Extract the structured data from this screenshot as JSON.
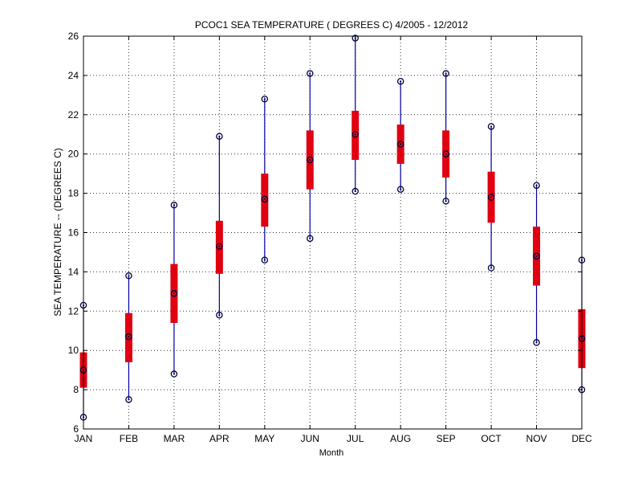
{
  "chart_data": {
    "type": "box",
    "title": "PCOC1  SEA TEMPERATURE ( DEGREES C) 4/2005 - 12/2012",
    "xlabel": "Month",
    "ylabel": "SEA TEMPERATURE -- (DEGREES C)",
    "ylim": [
      6,
      26
    ],
    "yticks": [
      6,
      8,
      10,
      12,
      14,
      16,
      18,
      20,
      22,
      24,
      26
    ],
    "categories": [
      "JAN",
      "FEB",
      "MAR",
      "APR",
      "MAY",
      "JUN",
      "JUL",
      "AUG",
      "SEP",
      "OCT",
      "NOV",
      "DEC"
    ],
    "min": [
      6.6,
      7.5,
      8.8,
      11.8,
      14.6,
      15.7,
      18.1,
      18.2,
      17.6,
      14.2,
      10.4,
      8.0
    ],
    "q1": [
      8.1,
      9.4,
      11.4,
      13.9,
      16.3,
      18.2,
      19.7,
      19.5,
      18.8,
      16.5,
      13.3,
      9.1
    ],
    "median": [
      9.0,
      10.7,
      12.9,
      15.3,
      17.7,
      19.7,
      21.0,
      20.5,
      20.0,
      17.8,
      14.8,
      10.6
    ],
    "q3": [
      9.9,
      11.9,
      14.4,
      16.6,
      19.0,
      21.2,
      22.2,
      21.5,
      21.2,
      19.1,
      16.3,
      12.1
    ],
    "max": [
      12.3,
      13.8,
      17.4,
      20.9,
      22.8,
      24.1,
      25.9,
      23.7,
      24.1,
      21.4,
      18.4,
      14.6
    ],
    "grid": true,
    "colors": {
      "whisker": "#0000a0",
      "box": "#e00010",
      "marker": "#000040",
      "grid": "#000000"
    }
  }
}
